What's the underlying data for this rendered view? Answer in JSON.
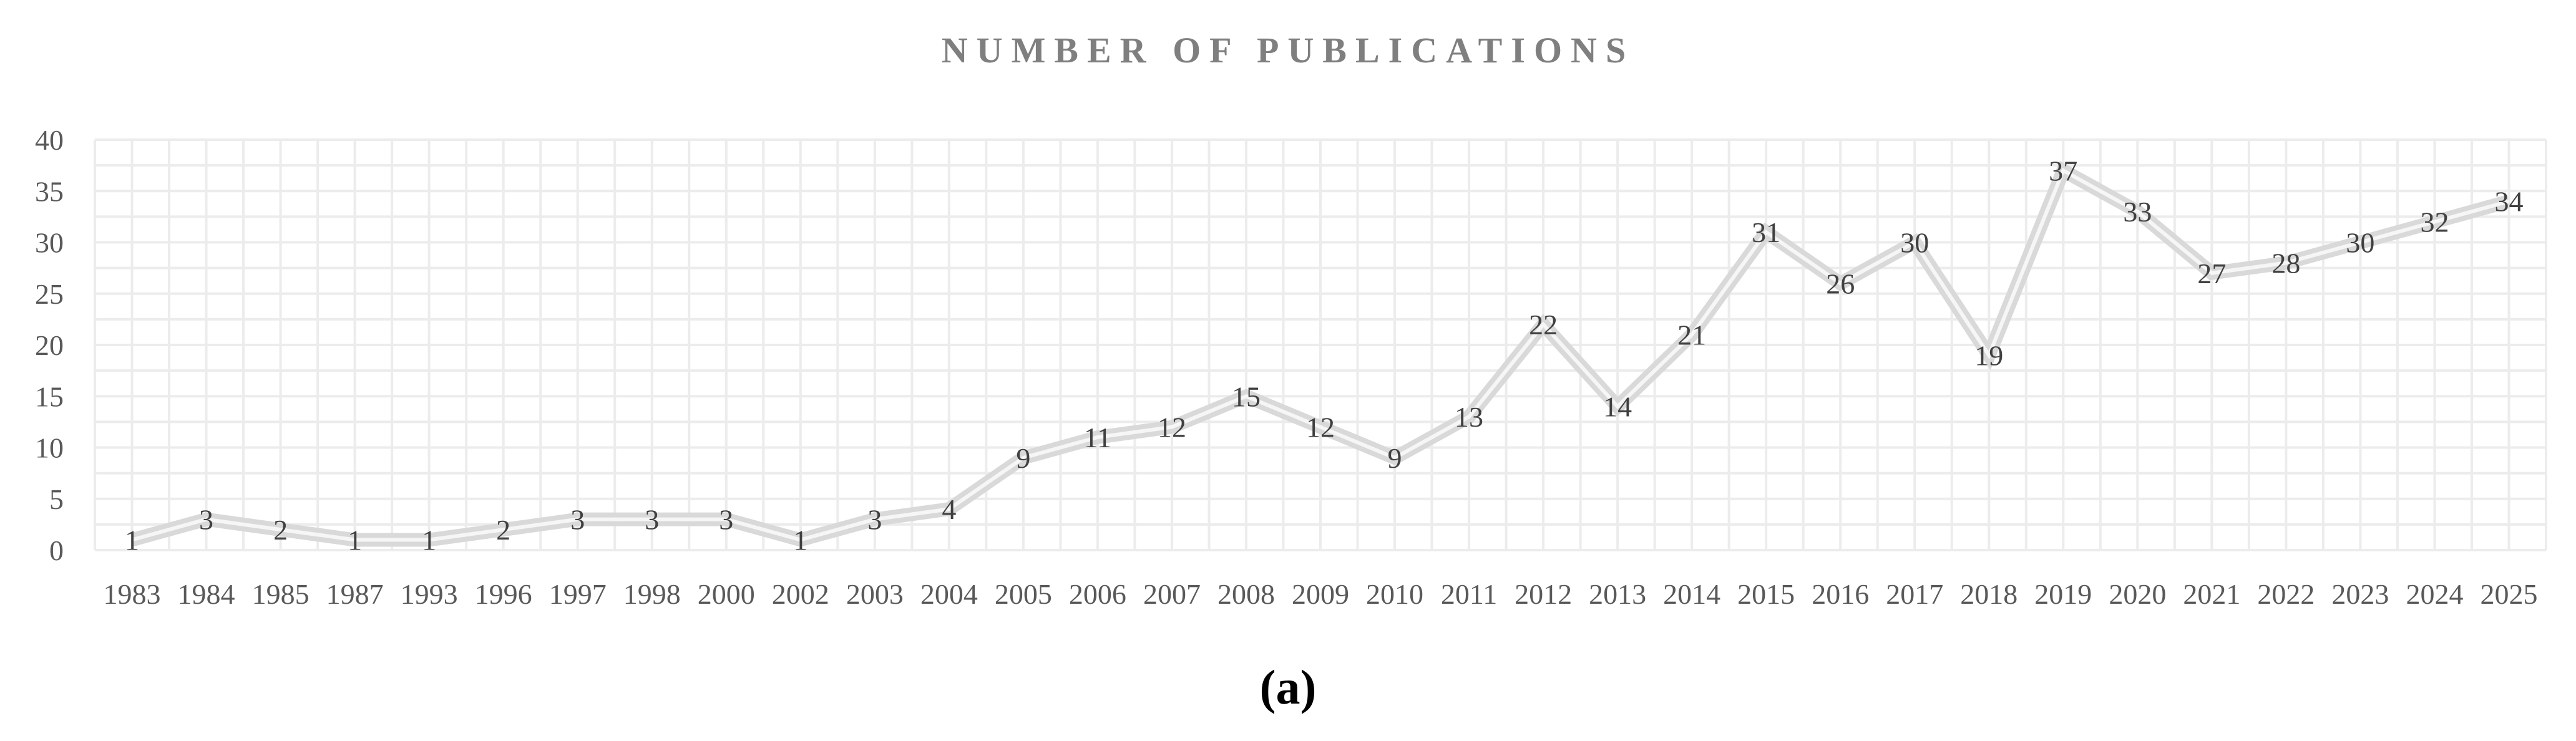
{
  "chart_data": {
    "type": "line",
    "title": "NUMBER OF PUBLICATIONS",
    "caption": "(a)",
    "categories": [
      "1983",
      "1984",
      "1985",
      "1987",
      "1993",
      "1996",
      "1997",
      "1998",
      "2000",
      "2002",
      "2003",
      "2004",
      "2005",
      "2006",
      "2007",
      "2008",
      "2009",
      "2010",
      "2011",
      "2012",
      "2013",
      "2014",
      "2015",
      "2016",
      "2017",
      "2018",
      "2019",
      "2020",
      "2021",
      "2022",
      "2023",
      "2024",
      "2025"
    ],
    "values": [
      1,
      3,
      2,
      1,
      1,
      2,
      3,
      3,
      3,
      1,
      3,
      4,
      9,
      11,
      12,
      15,
      12,
      9,
      13,
      22,
      14,
      21,
      31,
      26,
      30,
      19,
      37,
      33,
      27,
      28,
      30,
      32,
      34
    ],
    "y_ticks": [
      "0",
      "5",
      "10",
      "15",
      "20",
      "25",
      "30",
      "35",
      "40"
    ],
    "ylim": [
      0,
      40
    ],
    "grid": true,
    "data_labels": true,
    "line_color": "#d9d9d9"
  }
}
